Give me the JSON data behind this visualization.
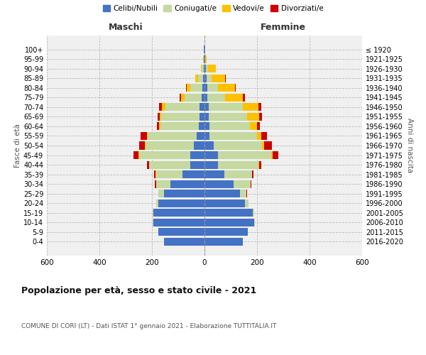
{
  "age_groups": [
    "0-4",
    "5-9",
    "10-14",
    "15-19",
    "20-24",
    "25-29",
    "30-34",
    "35-39",
    "40-44",
    "45-49",
    "50-54",
    "55-59",
    "60-64",
    "65-69",
    "70-74",
    "75-79",
    "80-84",
    "85-89",
    "90-94",
    "95-99",
    "100+"
  ],
  "birth_years": [
    "2016-2020",
    "2011-2015",
    "2006-2010",
    "2001-2005",
    "1996-2000",
    "1991-1995",
    "1986-1990",
    "1981-1985",
    "1976-1980",
    "1971-1975",
    "1966-1970",
    "1961-1965",
    "1956-1960",
    "1951-1955",
    "1946-1950",
    "1941-1945",
    "1936-1940",
    "1931-1935",
    "1926-1930",
    "1921-1925",
    "≤ 1920"
  ],
  "male": {
    "celibe": [
      155,
      175,
      195,
      195,
      175,
      155,
      130,
      85,
      55,
      55,
      40,
      30,
      22,
      20,
      18,
      10,
      8,
      5,
      3,
      2,
      2
    ],
    "coniugato": [
      0,
      1,
      2,
      3,
      10,
      20,
      55,
      100,
      155,
      195,
      185,
      185,
      145,
      145,
      130,
      65,
      45,
      20,
      8,
      3,
      1
    ],
    "vedovo": [
      0,
      0,
      0,
      0,
      0,
      0,
      0,
      1,
      1,
      2,
      3,
      5,
      5,
      5,
      15,
      15,
      15,
      10,
      3,
      1,
      0
    ],
    "divorziato": [
      0,
      0,
      0,
      0,
      0,
      1,
      3,
      5,
      8,
      18,
      22,
      22,
      8,
      8,
      10,
      5,
      2,
      1,
      0,
      0,
      0
    ]
  },
  "female": {
    "nubile": [
      145,
      165,
      190,
      185,
      155,
      135,
      110,
      75,
      50,
      50,
      35,
      20,
      18,
      15,
      15,
      10,
      10,
      8,
      5,
      2,
      2
    ],
    "coniugata": [
      0,
      1,
      1,
      3,
      12,
      25,
      65,
      105,
      155,
      205,
      185,
      180,
      155,
      148,
      130,
      68,
      40,
      20,
      8,
      2,
      0
    ],
    "vedova": [
      0,
      0,
      0,
      0,
      0,
      0,
      1,
      1,
      3,
      5,
      8,
      15,
      28,
      45,
      60,
      68,
      65,
      50,
      30,
      5,
      0
    ],
    "divorziata": [
      0,
      0,
      0,
      0,
      0,
      1,
      2,
      5,
      8,
      22,
      28,
      22,
      10,
      10,
      10,
      8,
      5,
      2,
      0,
      0,
      0
    ]
  },
  "colors": {
    "celibe": "#4472c4",
    "coniugato": "#c5d9a0",
    "vedovo": "#ffc000",
    "divorziato": "#cc0000"
  },
  "legend_labels": [
    "Celibi/Nubili",
    "Coniugati/e",
    "Vedovi/e",
    "Divorziati/e"
  ],
  "title": "Popolazione per età, sesso e stato civile - 2021",
  "subtitle": "COMUNE DI CORI (LT) - Dati ISTAT 1° gennaio 2021 - Elaborazione TUTTITALIA.IT",
  "xlabel_left": "Maschi",
  "xlabel_right": "Femmine",
  "ylabel_left": "Fasce di età",
  "ylabel_right": "Anni di nascita",
  "xlim": 600,
  "bg_chart": "#f0f0f0",
  "bg_fig": "#ffffff"
}
